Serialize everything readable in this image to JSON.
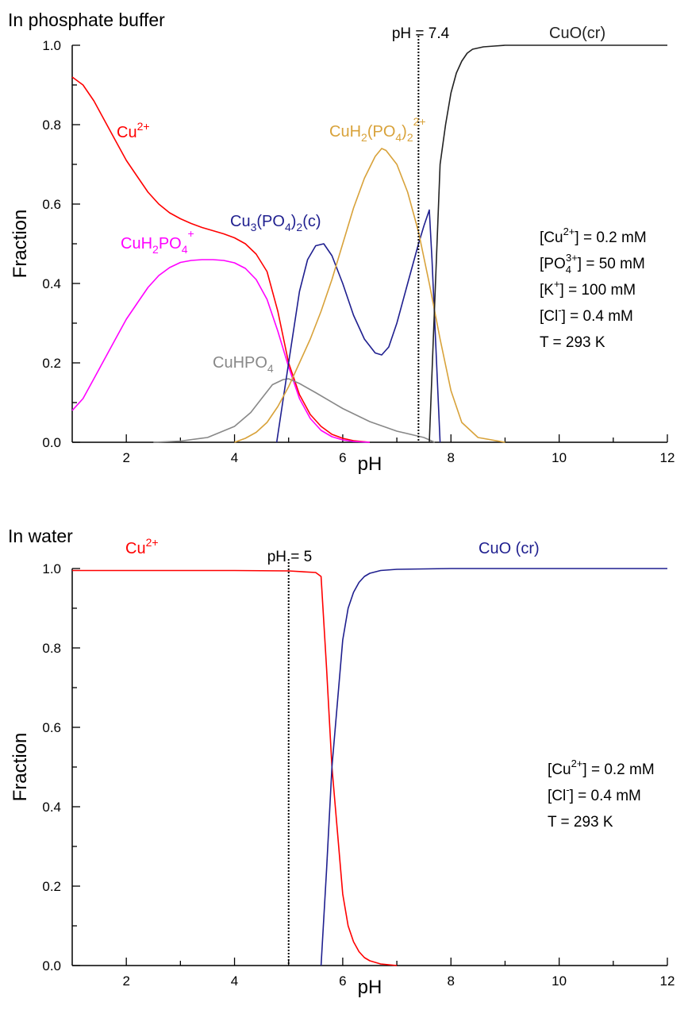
{
  "chart_data": [
    {
      "type": "line",
      "title": "In phosphate buffer",
      "xlabel": "pH",
      "ylabel": "Fraction",
      "xlim": [
        1,
        12
      ],
      "ylim": [
        0.0,
        1.0
      ],
      "xticks": [
        "2",
        "4",
        "6",
        "8",
        "10",
        "12"
      ],
      "yticks": [
        "0.0",
        "0.2",
        "0.4",
        "0.6",
        "0.8",
        "1.0"
      ],
      "grid": false,
      "reference_line": {
        "x": 7.4,
        "label": "pH = 7.4"
      },
      "conditions": [
        {
          "base": "[Cu",
          "sup": "2+",
          "sub": "",
          "tail": "] = 0.2 mM"
        },
        {
          "base": "[PO",
          "sub": "4",
          "sup": "3+",
          "tail": "] = 50 mM"
        },
        {
          "base": "[K",
          "sup": "+",
          "sub": "",
          "tail": "] = 100 mM"
        },
        {
          "base": "[Cl",
          "sup": "-",
          "sub": "",
          "tail": "] = 0.4 mM"
        },
        {
          "base": "T = 293 K",
          "sup": "",
          "sub": "",
          "tail": ""
        }
      ],
      "series": [
        {
          "name": "Cu2+",
          "color": "#ff0000",
          "x": [
            1.0,
            1.2,
            1.4,
            1.6,
            1.8,
            2.0,
            2.2,
            2.4,
            2.6,
            2.8,
            3.0,
            3.2,
            3.4,
            3.6,
            3.8,
            4.0,
            4.2,
            4.4,
            4.6,
            4.8,
            5.0,
            5.2,
            5.4,
            5.6,
            5.8,
            6.0,
            6.2,
            6.5
          ],
          "y": [
            0.92,
            0.9,
            0.86,
            0.81,
            0.76,
            0.71,
            0.67,
            0.63,
            0.6,
            0.578,
            0.563,
            0.551,
            0.541,
            0.533,
            0.525,
            0.515,
            0.5,
            0.474,
            0.43,
            0.33,
            0.2,
            0.12,
            0.07,
            0.04,
            0.02,
            0.01,
            0.004,
            0.0
          ]
        },
        {
          "name": "CuH2PO4+",
          "color": "#ff00ff",
          "x": [
            1.0,
            1.2,
            1.4,
            1.6,
            1.8,
            2.0,
            2.2,
            2.4,
            2.6,
            2.8,
            3.0,
            3.2,
            3.4,
            3.6,
            3.8,
            4.0,
            4.2,
            4.4,
            4.6,
            4.8,
            5.0,
            5.2,
            5.4,
            5.6,
            5.8,
            6.0,
            6.2,
            6.5
          ],
          "y": [
            0.08,
            0.11,
            0.16,
            0.21,
            0.26,
            0.31,
            0.35,
            0.39,
            0.42,
            0.44,
            0.453,
            0.458,
            0.46,
            0.46,
            0.458,
            0.452,
            0.438,
            0.41,
            0.36,
            0.28,
            0.19,
            0.11,
            0.06,
            0.03,
            0.014,
            0.006,
            0.002,
            0.0
          ]
        },
        {
          "name": "CuHPO4",
          "color": "#888888",
          "x": [
            2.5,
            3.0,
            3.5,
            4.0,
            4.3,
            4.5,
            4.7,
            4.9,
            5.0,
            5.2,
            5.5,
            6.0,
            6.5,
            7.0,
            7.5,
            7.7
          ],
          "y": [
            0.0,
            0.003,
            0.012,
            0.04,
            0.075,
            0.11,
            0.145,
            0.158,
            0.16,
            0.148,
            0.125,
            0.085,
            0.052,
            0.028,
            0.012,
            0.0
          ]
        },
        {
          "name": "Cu3(PO4)2(c)",
          "color": "#1f1f8f",
          "x": [
            4.78,
            5.0,
            5.2,
            5.35,
            5.5,
            5.65,
            5.8,
            6.0,
            6.2,
            6.4,
            6.6,
            6.72,
            6.85,
            7.0,
            7.2,
            7.4,
            7.5,
            7.6,
            7.65,
            7.8
          ],
          "y": [
            0.0,
            0.2,
            0.38,
            0.46,
            0.495,
            0.5,
            0.47,
            0.4,
            0.32,
            0.26,
            0.225,
            0.22,
            0.24,
            0.3,
            0.4,
            0.5,
            0.545,
            0.585,
            0.46,
            0.0
          ]
        },
        {
          "name": "CuH2(PO4)22+",
          "color": "#d8a23a",
          "x": [
            4.0,
            4.2,
            4.4,
            4.6,
            4.8,
            5.0,
            5.2,
            5.4,
            5.6,
            5.8,
            6.0,
            6.2,
            6.4,
            6.6,
            6.72,
            6.8,
            7.0,
            7.2,
            7.4,
            7.6,
            7.8,
            8.0,
            8.2,
            8.5,
            9.0
          ],
          "y": [
            0.0,
            0.01,
            0.025,
            0.05,
            0.09,
            0.14,
            0.2,
            0.26,
            0.33,
            0.41,
            0.5,
            0.59,
            0.665,
            0.72,
            0.74,
            0.735,
            0.7,
            0.63,
            0.53,
            0.4,
            0.26,
            0.13,
            0.05,
            0.012,
            0.0
          ]
        },
        {
          "name": "CuO(cr)",
          "color": "#222222",
          "x": [
            7.6,
            7.7,
            7.8,
            7.9,
            8.0,
            8.1,
            8.2,
            8.3,
            8.4,
            8.6,
            8.8,
            9.0,
            9.5,
            10.0,
            11.0,
            12.0
          ],
          "y": [
            0.0,
            0.35,
            0.7,
            0.8,
            0.88,
            0.93,
            0.96,
            0.98,
            0.99,
            0.996,
            0.998,
            1.0,
            1.0,
            1.0,
            1.0,
            1.0
          ]
        }
      ],
      "species_labels": [
        {
          "series": "Cu2+",
          "base": "Cu",
          "parts": [
            {
              "t": "2+",
              "s": "sup"
            }
          ]
        },
        {
          "series": "CuH2PO4+",
          "base": "CuH",
          "parts": [
            {
              "t": "2",
              "s": "sub"
            },
            {
              "t": "PO",
              "s": "n"
            },
            {
              "t": "4",
              "s": "sub"
            },
            {
              "t": "+",
              "s": "supx"
            }
          ]
        },
        {
          "series": "CuHPO4",
          "base": "CuHPO",
          "parts": [
            {
              "t": "4",
              "s": "sub"
            }
          ]
        },
        {
          "series": "Cu3(PO4)2(c)",
          "base": "Cu",
          "parts": [
            {
              "t": "3",
              "s": "sub"
            },
            {
              "t": "(PO",
              "s": "n"
            },
            {
              "t": "4",
              "s": "sub"
            },
            {
              "t": ")",
              "s": "n"
            },
            {
              "t": "2",
              "s": "sub"
            },
            {
              "t": "(c)",
              "s": "n"
            }
          ]
        },
        {
          "series": "CuH2(PO4)22+",
          "base": "CuH",
          "parts": [
            {
              "t": "2",
              "s": "sub"
            },
            {
              "t": "(PO",
              "s": "n"
            },
            {
              "t": "4",
              "s": "sub"
            },
            {
              "t": ")",
              "s": "n"
            },
            {
              "t": "2",
              "s": "sub"
            },
            {
              "t": "2+",
              "s": "supx"
            }
          ]
        },
        {
          "series": "CuO(cr)",
          "base": "CuO(cr)",
          "parts": []
        }
      ]
    },
    {
      "type": "line",
      "title": "In water",
      "xlabel": "pH",
      "ylabel": "Fraction",
      "xlim": [
        1,
        12
      ],
      "ylim": [
        0.0,
        1.0
      ],
      "xticks": [
        "2",
        "4",
        "6",
        "8",
        "10",
        "12"
      ],
      "yticks": [
        "0.0",
        "0.2",
        "0.4",
        "0.6",
        "0.8",
        "1.0"
      ],
      "grid": false,
      "reference_line": {
        "x": 5.0,
        "label": "pH = 5"
      },
      "conditions": [
        {
          "base": "[Cu",
          "sup": "2+",
          "sub": "",
          "tail": "] = 0.2 mM"
        },
        {
          "base": "[Cl",
          "sup": "-",
          "sub": "",
          "tail": "] = 0.4 mM"
        },
        {
          "base": "T = 293 K",
          "sup": "",
          "sub": "",
          "tail": ""
        }
      ],
      "series": [
        {
          "name": "Cu2+",
          "color": "#ff0000",
          "x": [
            1.0,
            2.0,
            3.0,
            4.0,
            5.0,
            5.5,
            5.6,
            5.7,
            5.8,
            5.9,
            6.0,
            6.1,
            6.2,
            6.3,
            6.4,
            6.5,
            6.7,
            7.0
          ],
          "y": [
            0.995,
            0.995,
            0.995,
            0.995,
            0.994,
            0.99,
            0.98,
            0.75,
            0.5,
            0.34,
            0.18,
            0.1,
            0.06,
            0.035,
            0.02,
            0.012,
            0.004,
            0.0
          ]
        },
        {
          "name": "CuO (cr)",
          "color": "#1f1f8f",
          "x": [
            5.6,
            5.7,
            5.8,
            5.9,
            6.0,
            6.1,
            6.2,
            6.3,
            6.4,
            6.5,
            6.7,
            7.0,
            7.5,
            8.0,
            9.0,
            10.0,
            11.0,
            12.0
          ],
          "y": [
            0.0,
            0.24,
            0.5,
            0.66,
            0.82,
            0.9,
            0.94,
            0.965,
            0.98,
            0.988,
            0.995,
            0.998,
            0.999,
            1.0,
            1.0,
            1.0,
            1.0,
            1.0
          ]
        }
      ],
      "species_labels": [
        {
          "series": "Cu2+",
          "base": "Cu",
          "parts": [
            {
              "t": "2+",
              "s": "sup"
            }
          ]
        },
        {
          "series": "CuO (cr)",
          "base": "CuO (cr)",
          "parts": []
        }
      ]
    }
  ]
}
